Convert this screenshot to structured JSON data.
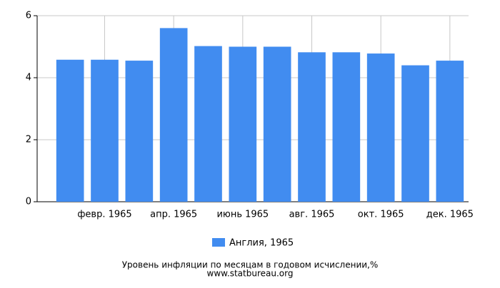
{
  "chart_data": {
    "type": "bar",
    "title": "Уровень инфляции по месяцам в годовом исчислении,%",
    "subtitle": "www.statbureau.org",
    "categories": [
      null,
      "февр. 1965",
      null,
      "апр. 1965",
      null,
      "июнь 1965",
      null,
      "авг. 1965",
      null,
      "окт. 1965",
      null,
      "дек. 1965"
    ],
    "series": [
      {
        "name": "Англия, 1965",
        "color": "#418cf0",
        "values": [
          4.58,
          4.58,
          4.55,
          5.6,
          5.02,
          5.0,
          5.0,
          4.82,
          4.82,
          4.78,
          4.4,
          4.55
        ]
      }
    ],
    "ylim": [
      0,
      6
    ],
    "yticks": [
      0,
      2,
      4,
      6
    ],
    "grid": true
  }
}
